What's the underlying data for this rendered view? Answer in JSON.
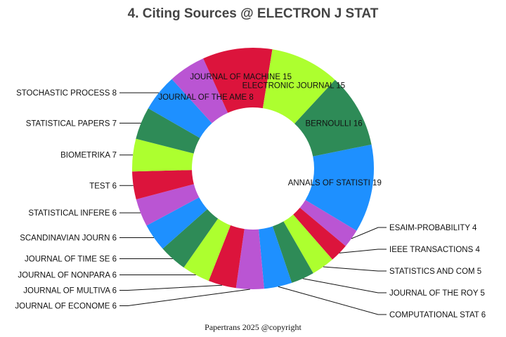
{
  "colors": {
    "blue": "#1e90ff",
    "red": "#dc143c",
    "green": "#2e8b57",
    "lime": "#adff2f",
    "purple": "#ba55d3"
  },
  "chart_data": {
    "type": "donut",
    "title": "4. Citing Sources @ ELECTRON J STAT",
    "footer": "Papertrans 2025 @copyright",
    "slices": [
      {
        "label": "ANNALS OF STATISTI 19",
        "name": "ANNALS OF STATISTI",
        "value": 19,
        "color": "#1e90ff"
      },
      {
        "label": "ESAIM-PROBABILITY  4",
        "name": "ESAIM-PROBABILITY",
        "value": 4,
        "color": "#ba55d3"
      },
      {
        "label": "IEEE TRANSACTIONS  4",
        "name": "IEEE TRANSACTIONS",
        "value": 4,
        "color": "#dc143c"
      },
      {
        "label": "STATISTICS AND COM 5",
        "name": "STATISTICS AND COM",
        "value": 5,
        "color": "#adff2f"
      },
      {
        "label": "JOURNAL OF THE ROY 5",
        "name": "JOURNAL OF THE ROY",
        "value": 5,
        "color": "#2e8b57"
      },
      {
        "label": "COMPUTATIONAL STAT 6",
        "name": "COMPUTATIONAL STAT",
        "value": 6,
        "color": "#1e90ff"
      },
      {
        "label": "JOURNAL OF ECONOME 6",
        "name": "JOURNAL OF ECONOME",
        "value": 6,
        "color": "#ba55d3"
      },
      {
        "label": "JOURNAL OF MULTIVA 6",
        "name": "JOURNAL OF MULTIVA",
        "value": 6,
        "color": "#dc143c"
      },
      {
        "label": "JOURNAL OF NONPARA 6",
        "name": "JOURNAL OF NONPARA",
        "value": 6,
        "color": "#adff2f"
      },
      {
        "label": "JOURNAL OF TIME SE 6",
        "name": "JOURNAL OF TIME SE",
        "value": 6,
        "color": "#2e8b57"
      },
      {
        "label": "SCANDINAVIAN JOURN 6",
        "name": "SCANDINAVIAN JOURN",
        "value": 6,
        "color": "#1e90ff"
      },
      {
        "label": "STATISTICAL INFERE 6",
        "name": "STATISTICAL INFERE",
        "value": 6,
        "color": "#ba55d3"
      },
      {
        "label": "TEST 6",
        "name": "TEST",
        "value": 6,
        "color": "#dc143c"
      },
      {
        "label": "BIOMETRIKA 7",
        "name": "BIOMETRIKA",
        "value": 7,
        "color": "#adff2f"
      },
      {
        "label": "STATISTICAL PAPERS 7",
        "name": "STATISTICAL PAPERS",
        "value": 7,
        "color": "#2e8b57"
      },
      {
        "label": "STOCHASTIC PROCESS 8",
        "name": "STOCHASTIC PROCESS",
        "value": 8,
        "color": "#1e90ff"
      },
      {
        "label": "JOURNAL OF THE AME 8",
        "name": "JOURNAL OF THE AME",
        "value": 8,
        "color": "#ba55d3"
      },
      {
        "label": "JOURNAL OF MACHINE 15",
        "name": "JOURNAL OF MACHINE",
        "value": 15,
        "color": "#dc143c"
      },
      {
        "label": "ELECTRONIC JOURNAL 15",
        "name": "ELECTRONIC JOURNAL",
        "value": 15,
        "color": "#adff2f"
      },
      {
        "label": "BERNOULLI 16",
        "name": "BERNOULLI",
        "value": 16,
        "color": "#2e8b57"
      }
    ]
  }
}
